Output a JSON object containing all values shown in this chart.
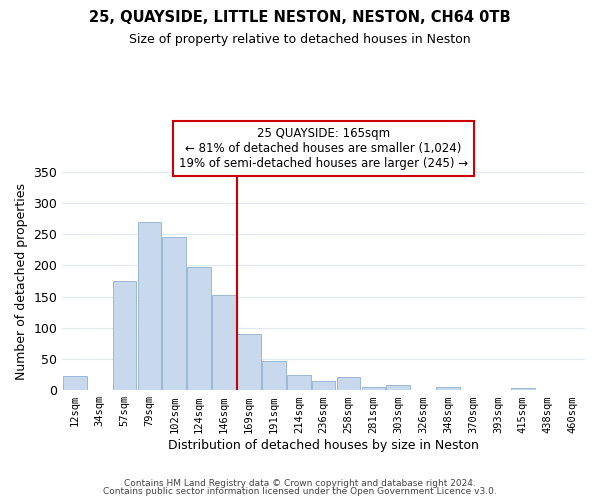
{
  "title": "25, QUAYSIDE, LITTLE NESTON, NESTON, CH64 0TB",
  "subtitle": "Size of property relative to detached houses in Neston",
  "xlabel": "Distribution of detached houses by size in Neston",
  "ylabel": "Number of detached properties",
  "bar_color": "#c8d8ed",
  "bar_edge_color": "#9ab8d8",
  "categories": [
    "12sqm",
    "34sqm",
    "57sqm",
    "79sqm",
    "102sqm",
    "124sqm",
    "146sqm",
    "169sqm",
    "191sqm",
    "214sqm",
    "236sqm",
    "258sqm",
    "281sqm",
    "303sqm",
    "326sqm",
    "348sqm",
    "370sqm",
    "393sqm",
    "415sqm",
    "438sqm",
    "460sqm"
  ],
  "values": [
    23,
    0,
    175,
    270,
    245,
    198,
    153,
    90,
    46,
    25,
    14,
    21,
    5,
    8,
    0,
    5,
    0,
    0,
    4,
    0,
    0
  ],
  "property_label": "25 QUAYSIDE: 165sqm",
  "annotation_line1": "← 81% of detached houses are smaller (1,024)",
  "annotation_line2": "19% of semi-detached houses are larger (245) →",
  "vline_x_index": 7,
  "vline_color": "#cc0000",
  "annotation_box_color": "#ffffff",
  "annotation_box_edge_color": "#cc0000",
  "ylim": [
    0,
    350
  ],
  "yticks": [
    0,
    50,
    100,
    150,
    200,
    250,
    300,
    350
  ],
  "footnote1": "Contains HM Land Registry data © Crown copyright and database right 2024.",
  "footnote2": "Contains public sector information licensed under the Open Government Licence v3.0.",
  "background_color": "#ffffff",
  "grid_color": "#dde8f0"
}
